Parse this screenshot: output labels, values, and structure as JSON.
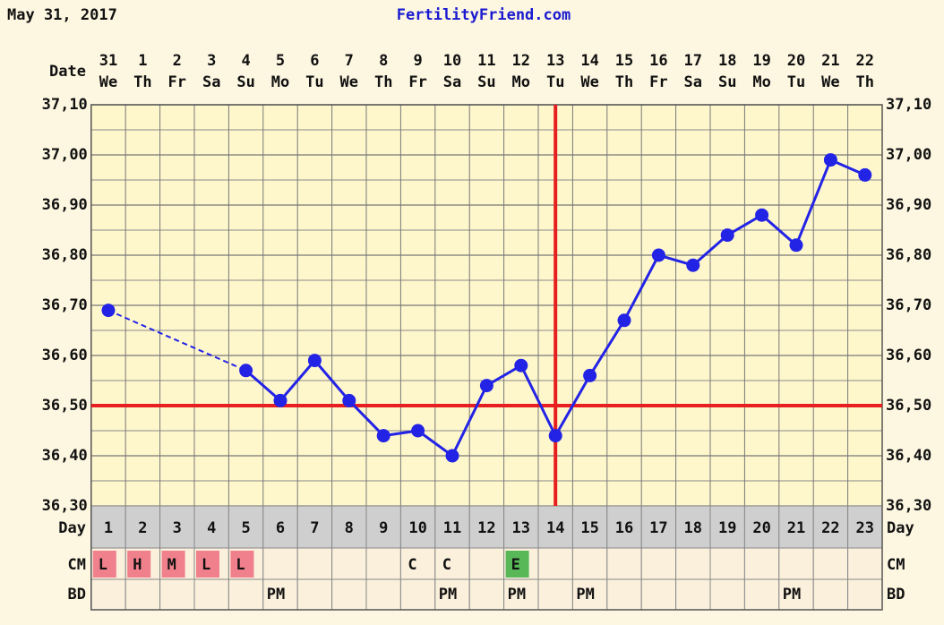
{
  "chart_data": {
    "type": "line",
    "title": "FertilityFriend.com",
    "subtitle": "May 31, 2017",
    "date_label": "Date",
    "day_label": "Day",
    "cm_label": "CM",
    "bd_label": "BD",
    "x": [
      1,
      2,
      3,
      4,
      5,
      6,
      7,
      8,
      9,
      10,
      11,
      12,
      13,
      14,
      15,
      16,
      17,
      18,
      19,
      20,
      21,
      22,
      23
    ],
    "dates": [
      31,
      1,
      2,
      3,
      4,
      5,
      6,
      7,
      8,
      9,
      10,
      11,
      12,
      13,
      14,
      15,
      16,
      17,
      18,
      19,
      20,
      21,
      22
    ],
    "weekdays": [
      "We",
      "Th",
      "Fr",
      "Sa",
      "Su",
      "Mo",
      "Tu",
      "We",
      "Th",
      "Fr",
      "Sa",
      "Su",
      "Mo",
      "Tu",
      "We",
      "Th",
      "Fr",
      "Sa",
      "Su",
      "Mo",
      "Tu",
      "We",
      "Th"
    ],
    "series": [
      {
        "color": "#2323e6",
        "values": [
          36.69,
          null,
          null,
          null,
          36.57,
          36.51,
          36.59,
          36.51,
          36.44,
          36.45,
          36.4,
          36.54,
          36.58,
          36.44,
          36.56,
          36.67,
          36.8,
          36.78,
          36.84,
          36.88,
          36.82,
          36.99,
          36.96
        ]
      }
    ],
    "ylim": [
      36.3,
      37.1
    ],
    "yticks": [
      {
        "value": 36.3,
        "label": "36,30"
      },
      {
        "value": 36.4,
        "label": "36,40"
      },
      {
        "value": 36.5,
        "label": "36,50"
      },
      {
        "value": 36.6,
        "label": "36,60"
      },
      {
        "value": 36.7,
        "label": "36,70"
      },
      {
        "value": 36.8,
        "label": "36,80"
      },
      {
        "value": 36.9,
        "label": "36,90"
      },
      {
        "value": 37.0,
        "label": "37,00"
      },
      {
        "value": 37.1,
        "label": "37,10"
      }
    ],
    "minor_grid": [
      36.35,
      36.45,
      36.55,
      36.65,
      36.75,
      36.85,
      36.95,
      37.05
    ],
    "grid": true,
    "coverline": 36.5,
    "ovulation_day": 14,
    "marker_color": "#e62020",
    "cm": [
      "L",
      "H",
      "M",
      "L",
      "L",
      null,
      null,
      null,
      null,
      "C",
      "C",
      null,
      "E",
      null,
      null,
      null,
      null,
      null,
      null,
      null,
      null,
      null,
      null
    ],
    "cm_colors": {
      "L": "#f0808c",
      "H": "#f0808c",
      "M": "#f0808c",
      "E": "#58b858"
    },
    "bd": [
      null,
      null,
      null,
      null,
      null,
      "PM",
      null,
      null,
      null,
      null,
      "PM",
      null,
      "PM",
      null,
      "PM",
      null,
      null,
      null,
      null,
      null,
      "PM",
      null,
      null
    ]
  }
}
